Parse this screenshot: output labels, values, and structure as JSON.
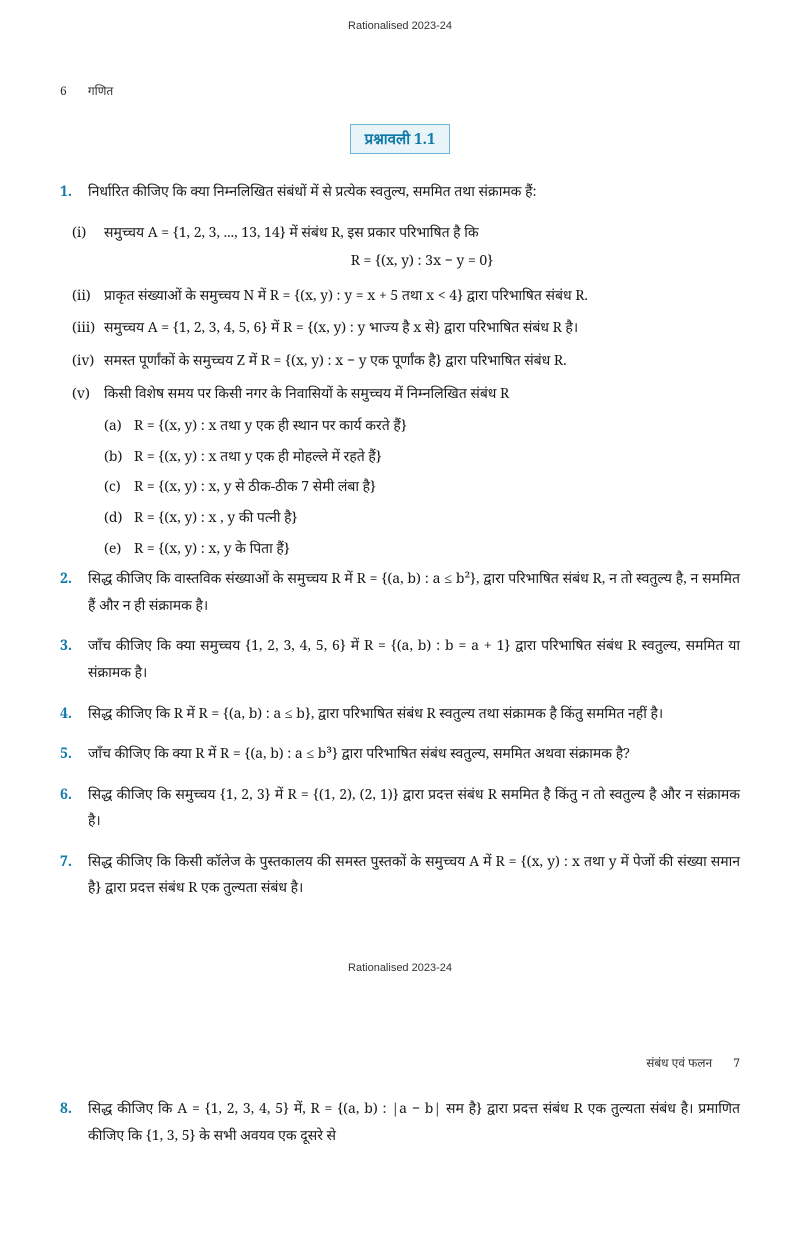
{
  "header": {
    "rationalised": "Rationalised 2023-24",
    "page_num_top": "6",
    "subject": "गणित",
    "page_num_bottom": "7",
    "chapter_name": "संबंध एवं फलन"
  },
  "exercise": {
    "title": "प्रश्नावली 1.1"
  },
  "questions": [
    {
      "num": "1.",
      "text": "निर्धारित कीजिए कि क्या निम्नलिखित संबंधों में से प्रत्येक स्वतुल्य, सममित तथा संक्रामक हैं:",
      "subs": [
        {
          "num": "(i)",
          "text": "समुच्चय A = {1, 2, 3, ..., 13, 14} में संबंध R, इस प्रकार परिभाषित है कि",
          "formula": "R = {(x, y) : 3x − y = 0}"
        },
        {
          "num": "(ii)",
          "text": "प्राकृत संख्याओं के समुच्चय N में R = {(x, y) : y = x + 5 तथा x < 4} द्वारा परिभाषित संबंध R."
        },
        {
          "num": "(iii)",
          "text": "समुच्चय A = {1, 2, 3, 4, 5, 6} में R = {(x, y) : y भाज्य है x से} द्वारा परिभाषित संबंध R है।"
        },
        {
          "num": "(iv)",
          "text": "समस्त पूर्णांकों के समुच्चय Z में R = {(x, y) : x − y एक पूर्णांक है} द्वारा परिभाषित संबंध R."
        },
        {
          "num": "(v)",
          "text": "किसी विशेष समय पर किसी नगर के निवासियों के समुच्चय में निम्नलिखित संबंध R",
          "subsubs": [
            {
              "num": "(a)",
              "text": "R = {(x, y) : x तथा y एक ही स्थान पर कार्य करते हैं}"
            },
            {
              "num": "(b)",
              "text": "R = {(x, y) : x तथा y एक ही मोहल्ले में रहते हैं}"
            },
            {
              "num": "(c)",
              "text": "R = {(x, y) : x, y से ठीक-ठीक 7 सेमी लंबा है}"
            },
            {
              "num": "(d)",
              "text": "R = {(x, y) : x , y की पत्नी है}"
            },
            {
              "num": "(e)",
              "text": "R = {(x, y) : x, y के पिता हैं}"
            }
          ]
        }
      ]
    },
    {
      "num": "2.",
      "text": "सिद्ध कीजिए कि वास्तविक संख्याओं के समुच्चय R में R = {(a, b) : a ≤ b²}, द्वारा परिभाषित संबंध R, न तो स्वतुल्य है, न सममित हैं और न ही संक्रामक है।"
    },
    {
      "num": "3.",
      "text": "जाँच कीजिए कि क्या समुच्चय {1, 2, 3, 4, 5, 6} में R = {(a, b) : b = a + 1} द्वारा परिभाषित संबंध R स्वतुल्य, सममित या संक्रामक है।"
    },
    {
      "num": "4.",
      "text": "सिद्ध कीजिए कि R में R = {(a, b) : a ≤ b}, द्वारा परिभाषित संबंध R स्वतुल्य तथा संक्रामक है किंतु सममित नहीं है।"
    },
    {
      "num": "5.",
      "text": "जाँच कीजिए कि क्या R में R = {(a, b) : a ≤ b³} द्वारा परिभाषित संबंध स्वतुल्य, सममित अथवा संक्रामक है?"
    },
    {
      "num": "6.",
      "text": "सिद्ध कीजिए कि समुच्चय {1, 2, 3} में R = {(1, 2), (2, 1)} द्वारा प्रदत्त संबंध R सममित है किंतु न तो स्वतुल्य है और न संक्रामक है।"
    },
    {
      "num": "7.",
      "text": "सिद्ध कीजिए कि किसी कॉलेज के पुस्तकालय की समस्त पुस्तकों के समुच्चय A में R = {(x, y) : x तथा y में पेजों की संख्या समान है} द्वारा प्रदत्त संबंध R एक तुल्यता संबंध है।"
    },
    {
      "num": "8.",
      "text": "सिद्ध कीजिए कि A = {1, 2, 3, 4, 5} में, R = {(a, b) : |a − b| सम है} द्वारा प्रदत्त संबंध R एक तुल्यता संबंध है। प्रमाणित कीजिए कि {1, 3, 5} के सभी अवयव एक दूसरे से"
    }
  ]
}
